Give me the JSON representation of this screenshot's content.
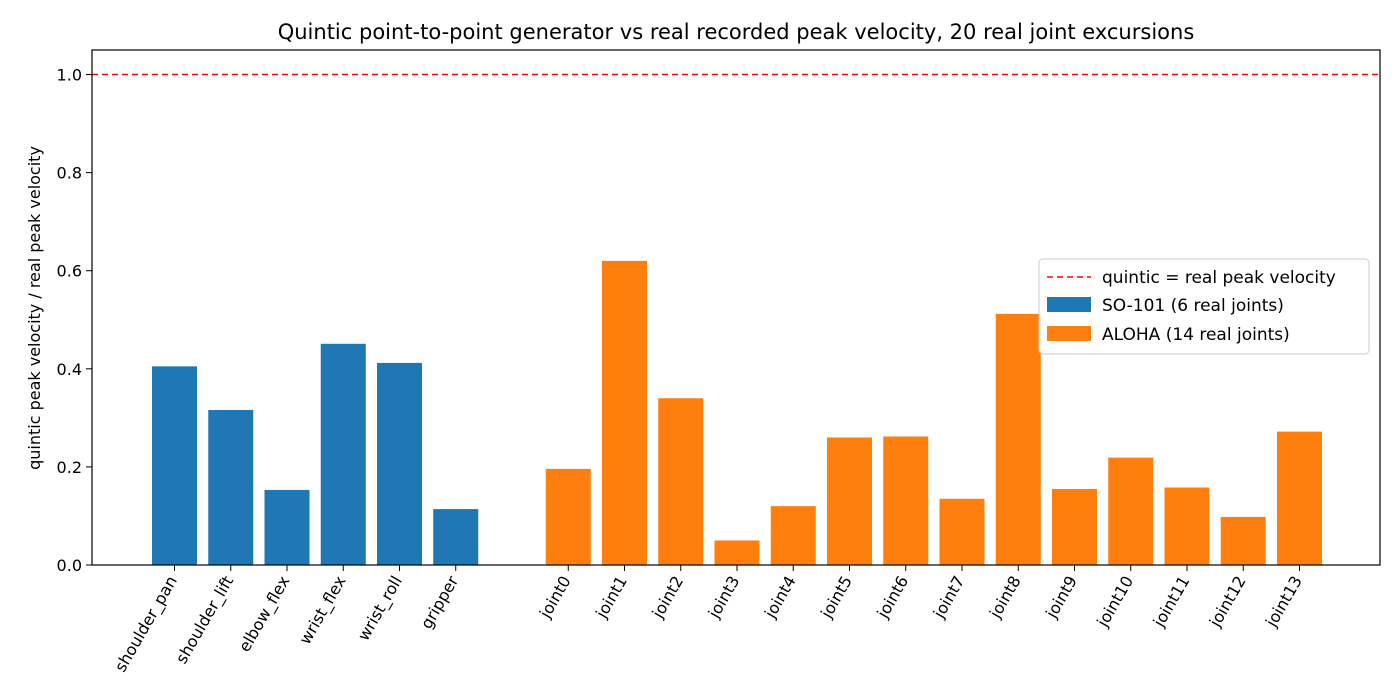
{
  "chart_data": {
    "type": "bar",
    "title": "Quintic point-to-point generator vs real recorded peak velocity, 20 real joint excursions",
    "ylabel": "quintic peak velocity / real peak velocity",
    "xlabel": "",
    "ylim": [
      0,
      1.05
    ],
    "yticks": [
      "0.0",
      "0.2",
      "0.4",
      "0.6",
      "0.8",
      "1.0"
    ],
    "grid": false,
    "legend_position": "right",
    "reference_line": {
      "y": 1.0,
      "label": "quintic = real peak velocity",
      "color": "#ff0000",
      "style": "dashed"
    },
    "series": [
      {
        "name": "SO-101 (6 real joints)",
        "color": "#1f77b4",
        "categories": [
          "shoulder_pan",
          "shoulder_lift",
          "elbow_flex",
          "wrist_flex",
          "wrist_roll",
          "gripper"
        ],
        "values": [
          0.405,
          0.316,
          0.153,
          0.451,
          0.412,
          0.114
        ]
      },
      {
        "name": "ALOHA (14 real joints)",
        "color": "#ff7f0e",
        "categories": [
          "joint0",
          "joint1",
          "joint2",
          "joint3",
          "joint4",
          "joint5",
          "joint6",
          "joint7",
          "joint8",
          "joint9",
          "joint10",
          "joint11",
          "joint12",
          "joint13"
        ],
        "values": [
          0.196,
          0.62,
          0.34,
          0.05,
          0.12,
          0.26,
          0.262,
          0.135,
          0.512,
          0.155,
          0.219,
          0.158,
          0.098,
          0.272
        ]
      }
    ]
  }
}
